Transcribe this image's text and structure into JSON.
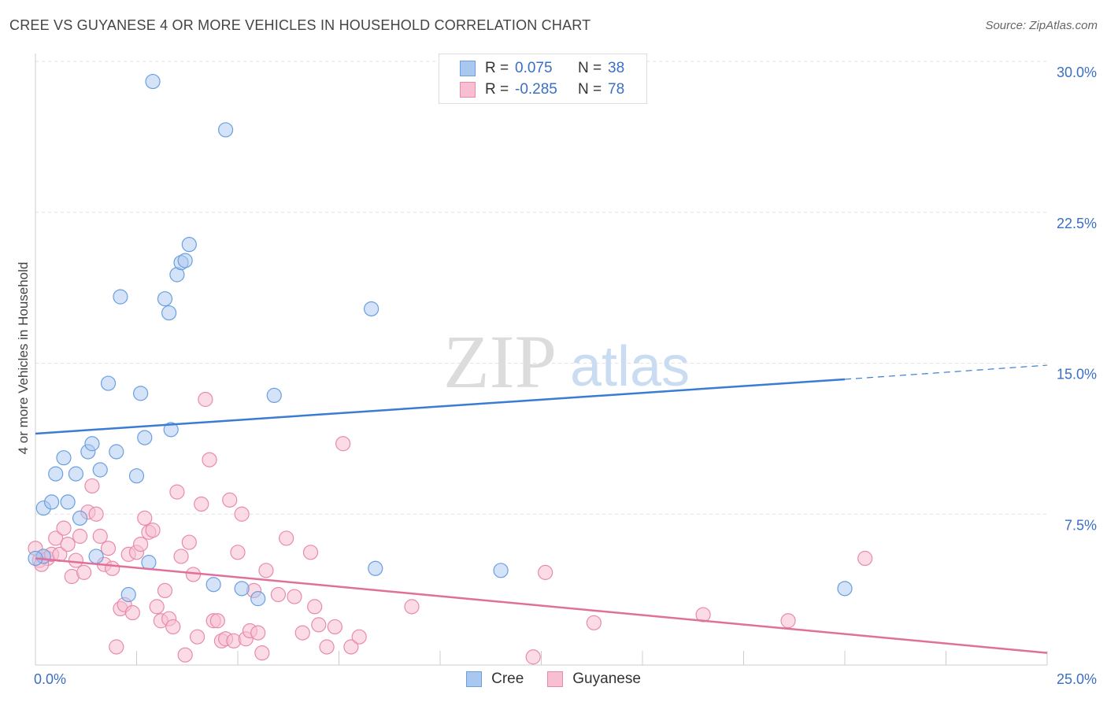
{
  "header": {
    "title": "CREE VS GUYANESE 4 OR MORE VEHICLES IN HOUSEHOLD CORRELATION CHART",
    "source": "Source: ZipAtlas.com"
  },
  "watermark": {
    "zip": "ZIP",
    "atlas": "atlas"
  },
  "legend": {
    "rows": [
      {
        "r_label": "R =",
        "r_value": "0.075",
        "n_label": "N =",
        "n_value": "38",
        "color": "#a9c8f0",
        "stroke": "#6a9fe0"
      },
      {
        "r_label": "R =",
        "r_value": "-0.285",
        "n_label": "N =",
        "n_value": "78",
        "color": "#f7bfd1",
        "stroke": "#e88aab"
      }
    ]
  },
  "bottom_legend": {
    "cree": "Cree",
    "guyanese": "Guyanese"
  },
  "chart_data": {
    "type": "scatter",
    "title": "CREE VS GUYANESE 4 OR MORE VEHICLES IN HOUSEHOLD CORRELATION CHART",
    "xlabel": "",
    "ylabel": "4 or more Vehicles in Household",
    "xlim": [
      0,
      25
    ],
    "ylim": [
      0,
      30
    ],
    "x_tick_labels": [
      "0.0%",
      "25.0%"
    ],
    "y_ticks": [
      7.5,
      15.0,
      22.5,
      30.0
    ],
    "y_tick_labels": [
      "7.5%",
      "15.0%",
      "22.5%",
      "30.0%"
    ],
    "grid": true,
    "legend_position": "top-center",
    "colors": {
      "cree": "#3a7bd5",
      "guyanese": "#e0709a"
    },
    "series": [
      {
        "name": "Cree",
        "points": [
          [
            0.2,
            5.4
          ],
          [
            0.2,
            7.8
          ],
          [
            0.4,
            8.1
          ],
          [
            0.5,
            9.5
          ],
          [
            0.7,
            10.3
          ],
          [
            0.8,
            8.1
          ],
          [
            1.0,
            9.5
          ],
          [
            1.1,
            7.3
          ],
          [
            1.3,
            10.6
          ],
          [
            1.4,
            11.0
          ],
          [
            1.5,
            5.4
          ],
          [
            1.6,
            9.7
          ],
          [
            1.8,
            14.0
          ],
          [
            2.0,
            10.6
          ],
          [
            2.1,
            18.3
          ],
          [
            2.3,
            3.5
          ],
          [
            2.5,
            9.4
          ],
          [
            2.6,
            13.5
          ],
          [
            2.7,
            11.3
          ],
          [
            2.8,
            5.1
          ],
          [
            2.9,
            29.0
          ],
          [
            3.2,
            18.2
          ],
          [
            3.3,
            17.5
          ],
          [
            3.35,
            11.7
          ],
          [
            3.5,
            19.4
          ],
          [
            3.6,
            20.0
          ],
          [
            3.7,
            20.1
          ],
          [
            3.8,
            20.9
          ],
          [
            4.4,
            4.0
          ],
          [
            4.7,
            26.6
          ],
          [
            5.1,
            3.8
          ],
          [
            5.5,
            3.3
          ],
          [
            5.9,
            13.4
          ],
          [
            8.3,
            17.7
          ],
          [
            8.4,
            4.8
          ],
          [
            11.5,
            4.7
          ],
          [
            20.0,
            3.8
          ],
          [
            0.0,
            5.3
          ]
        ],
        "trend": {
          "x": [
            0,
            20
          ],
          "y": [
            11.5,
            14.2
          ],
          "dashed_to": [
            25,
            14.9
          ]
        }
      },
      {
        "name": "Guyanese",
        "points": [
          [
            0.0,
            5.8
          ],
          [
            0.1,
            5.2
          ],
          [
            0.2,
            5.4
          ],
          [
            0.3,
            5.3
          ],
          [
            0.4,
            5.5
          ],
          [
            0.5,
            6.3
          ],
          [
            0.6,
            5.5
          ],
          [
            0.7,
            6.8
          ],
          [
            0.8,
            6.0
          ],
          [
            0.9,
            4.4
          ],
          [
            1.0,
            5.2
          ],
          [
            1.1,
            6.4
          ],
          [
            1.2,
            4.6
          ],
          [
            1.3,
            7.6
          ],
          [
            1.4,
            8.9
          ],
          [
            1.5,
            7.5
          ],
          [
            1.6,
            6.4
          ],
          [
            1.7,
            5.0
          ],
          [
            1.8,
            5.8
          ],
          [
            1.9,
            4.8
          ],
          [
            2.0,
            0.9
          ],
          [
            2.1,
            2.8
          ],
          [
            2.2,
            3.0
          ],
          [
            2.3,
            5.5
          ],
          [
            2.4,
            2.6
          ],
          [
            2.5,
            5.6
          ],
          [
            2.6,
            6.0
          ],
          [
            2.7,
            7.3
          ],
          [
            2.8,
            6.6
          ],
          [
            2.9,
            6.7
          ],
          [
            3.0,
            2.9
          ],
          [
            3.1,
            2.2
          ],
          [
            3.2,
            3.7
          ],
          [
            3.3,
            2.3
          ],
          [
            3.4,
            1.9
          ],
          [
            3.5,
            8.6
          ],
          [
            3.6,
            5.4
          ],
          [
            3.7,
            0.5
          ],
          [
            3.8,
            6.1
          ],
          [
            3.9,
            4.5
          ],
          [
            4.0,
            1.4
          ],
          [
            4.1,
            8.0
          ],
          [
            4.2,
            13.2
          ],
          [
            4.3,
            10.2
          ],
          [
            4.4,
            2.2
          ],
          [
            4.5,
            2.2
          ],
          [
            4.6,
            1.2
          ],
          [
            4.7,
            1.3
          ],
          [
            4.8,
            8.2
          ],
          [
            4.9,
            1.2
          ],
          [
            5.0,
            5.6
          ],
          [
            5.1,
            7.5
          ],
          [
            5.2,
            1.3
          ],
          [
            5.3,
            1.7
          ],
          [
            5.4,
            3.7
          ],
          [
            5.5,
            1.6
          ],
          [
            5.6,
            0.6
          ],
          [
            5.7,
            4.7
          ],
          [
            6.0,
            3.5
          ],
          [
            6.2,
            6.3
          ],
          [
            6.4,
            3.4
          ],
          [
            6.6,
            1.6
          ],
          [
            6.8,
            5.6
          ],
          [
            6.9,
            2.9
          ],
          [
            7.0,
            2.0
          ],
          [
            7.2,
            0.9
          ],
          [
            7.4,
            1.9
          ],
          [
            7.6,
            11.0
          ],
          [
            7.8,
            0.9
          ],
          [
            8.0,
            1.4
          ],
          [
            9.3,
            2.9
          ],
          [
            12.3,
            0.4
          ],
          [
            12.6,
            4.6
          ],
          [
            13.8,
            2.1
          ],
          [
            16.5,
            2.5
          ],
          [
            18.6,
            2.2
          ],
          [
            20.5,
            5.3
          ],
          [
            0.15,
            5.0
          ]
        ],
        "trend": {
          "x": [
            0,
            25
          ],
          "y": [
            5.3,
            0.6
          ]
        }
      }
    ]
  }
}
